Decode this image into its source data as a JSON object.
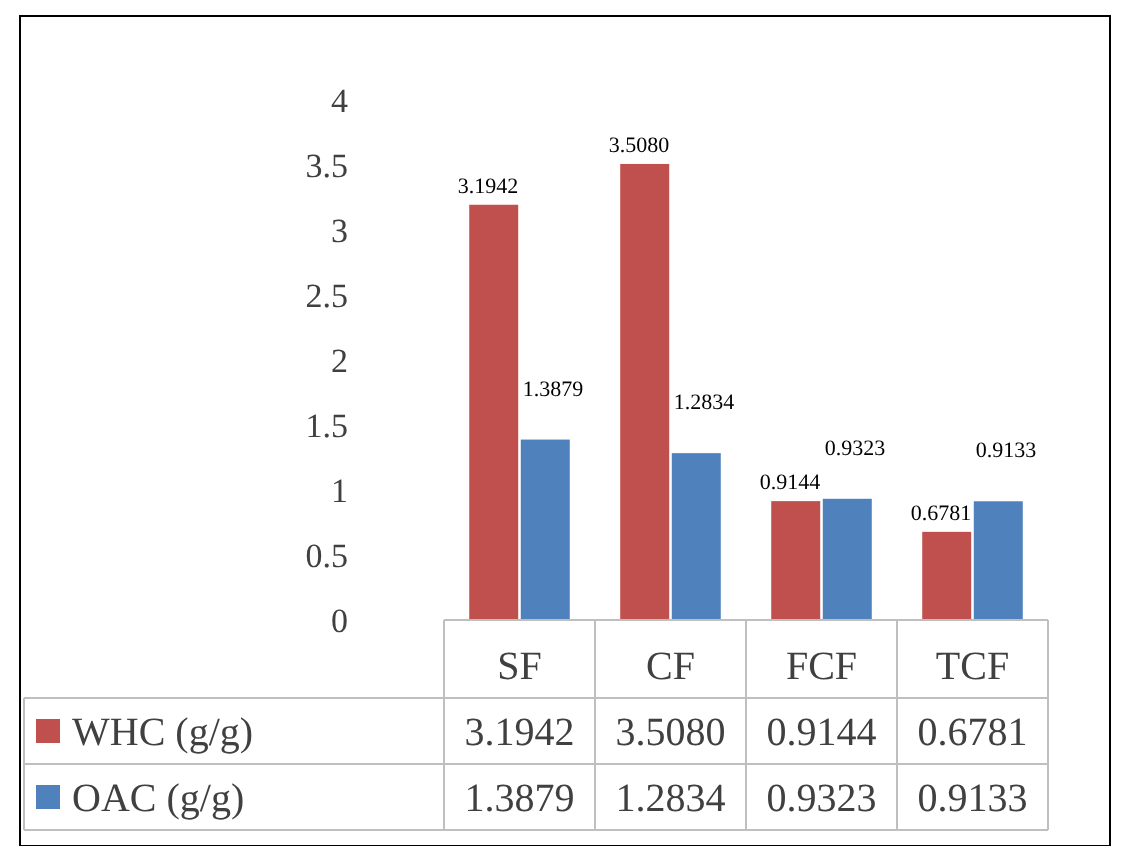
{
  "chart_data": {
    "type": "bar",
    "categories": [
      "SF",
      "CF",
      "FCF",
      "TCF"
    ],
    "series": [
      {
        "name": "WHC (g/g)",
        "color": "#c0504d",
        "values": [
          3.1942,
          3.508,
          0.9144,
          0.6781
        ]
      },
      {
        "name": "OAC (g/g)",
        "color": "#4f81bd",
        "values": [
          1.3879,
          1.2834,
          0.9323,
          0.9133
        ]
      }
    ],
    "value_labels": [
      [
        "3.1942",
        "3.5080",
        "0.9144",
        "0.6781"
      ],
      [
        "1.3879",
        "1.2834",
        "0.9323",
        "0.9133"
      ]
    ],
    "ylim": [
      0,
      4
    ],
    "yticks": [
      0,
      0.5,
      1,
      1.5,
      2,
      2.5,
      3,
      3.5,
      4
    ],
    "legend": "bottom"
  }
}
